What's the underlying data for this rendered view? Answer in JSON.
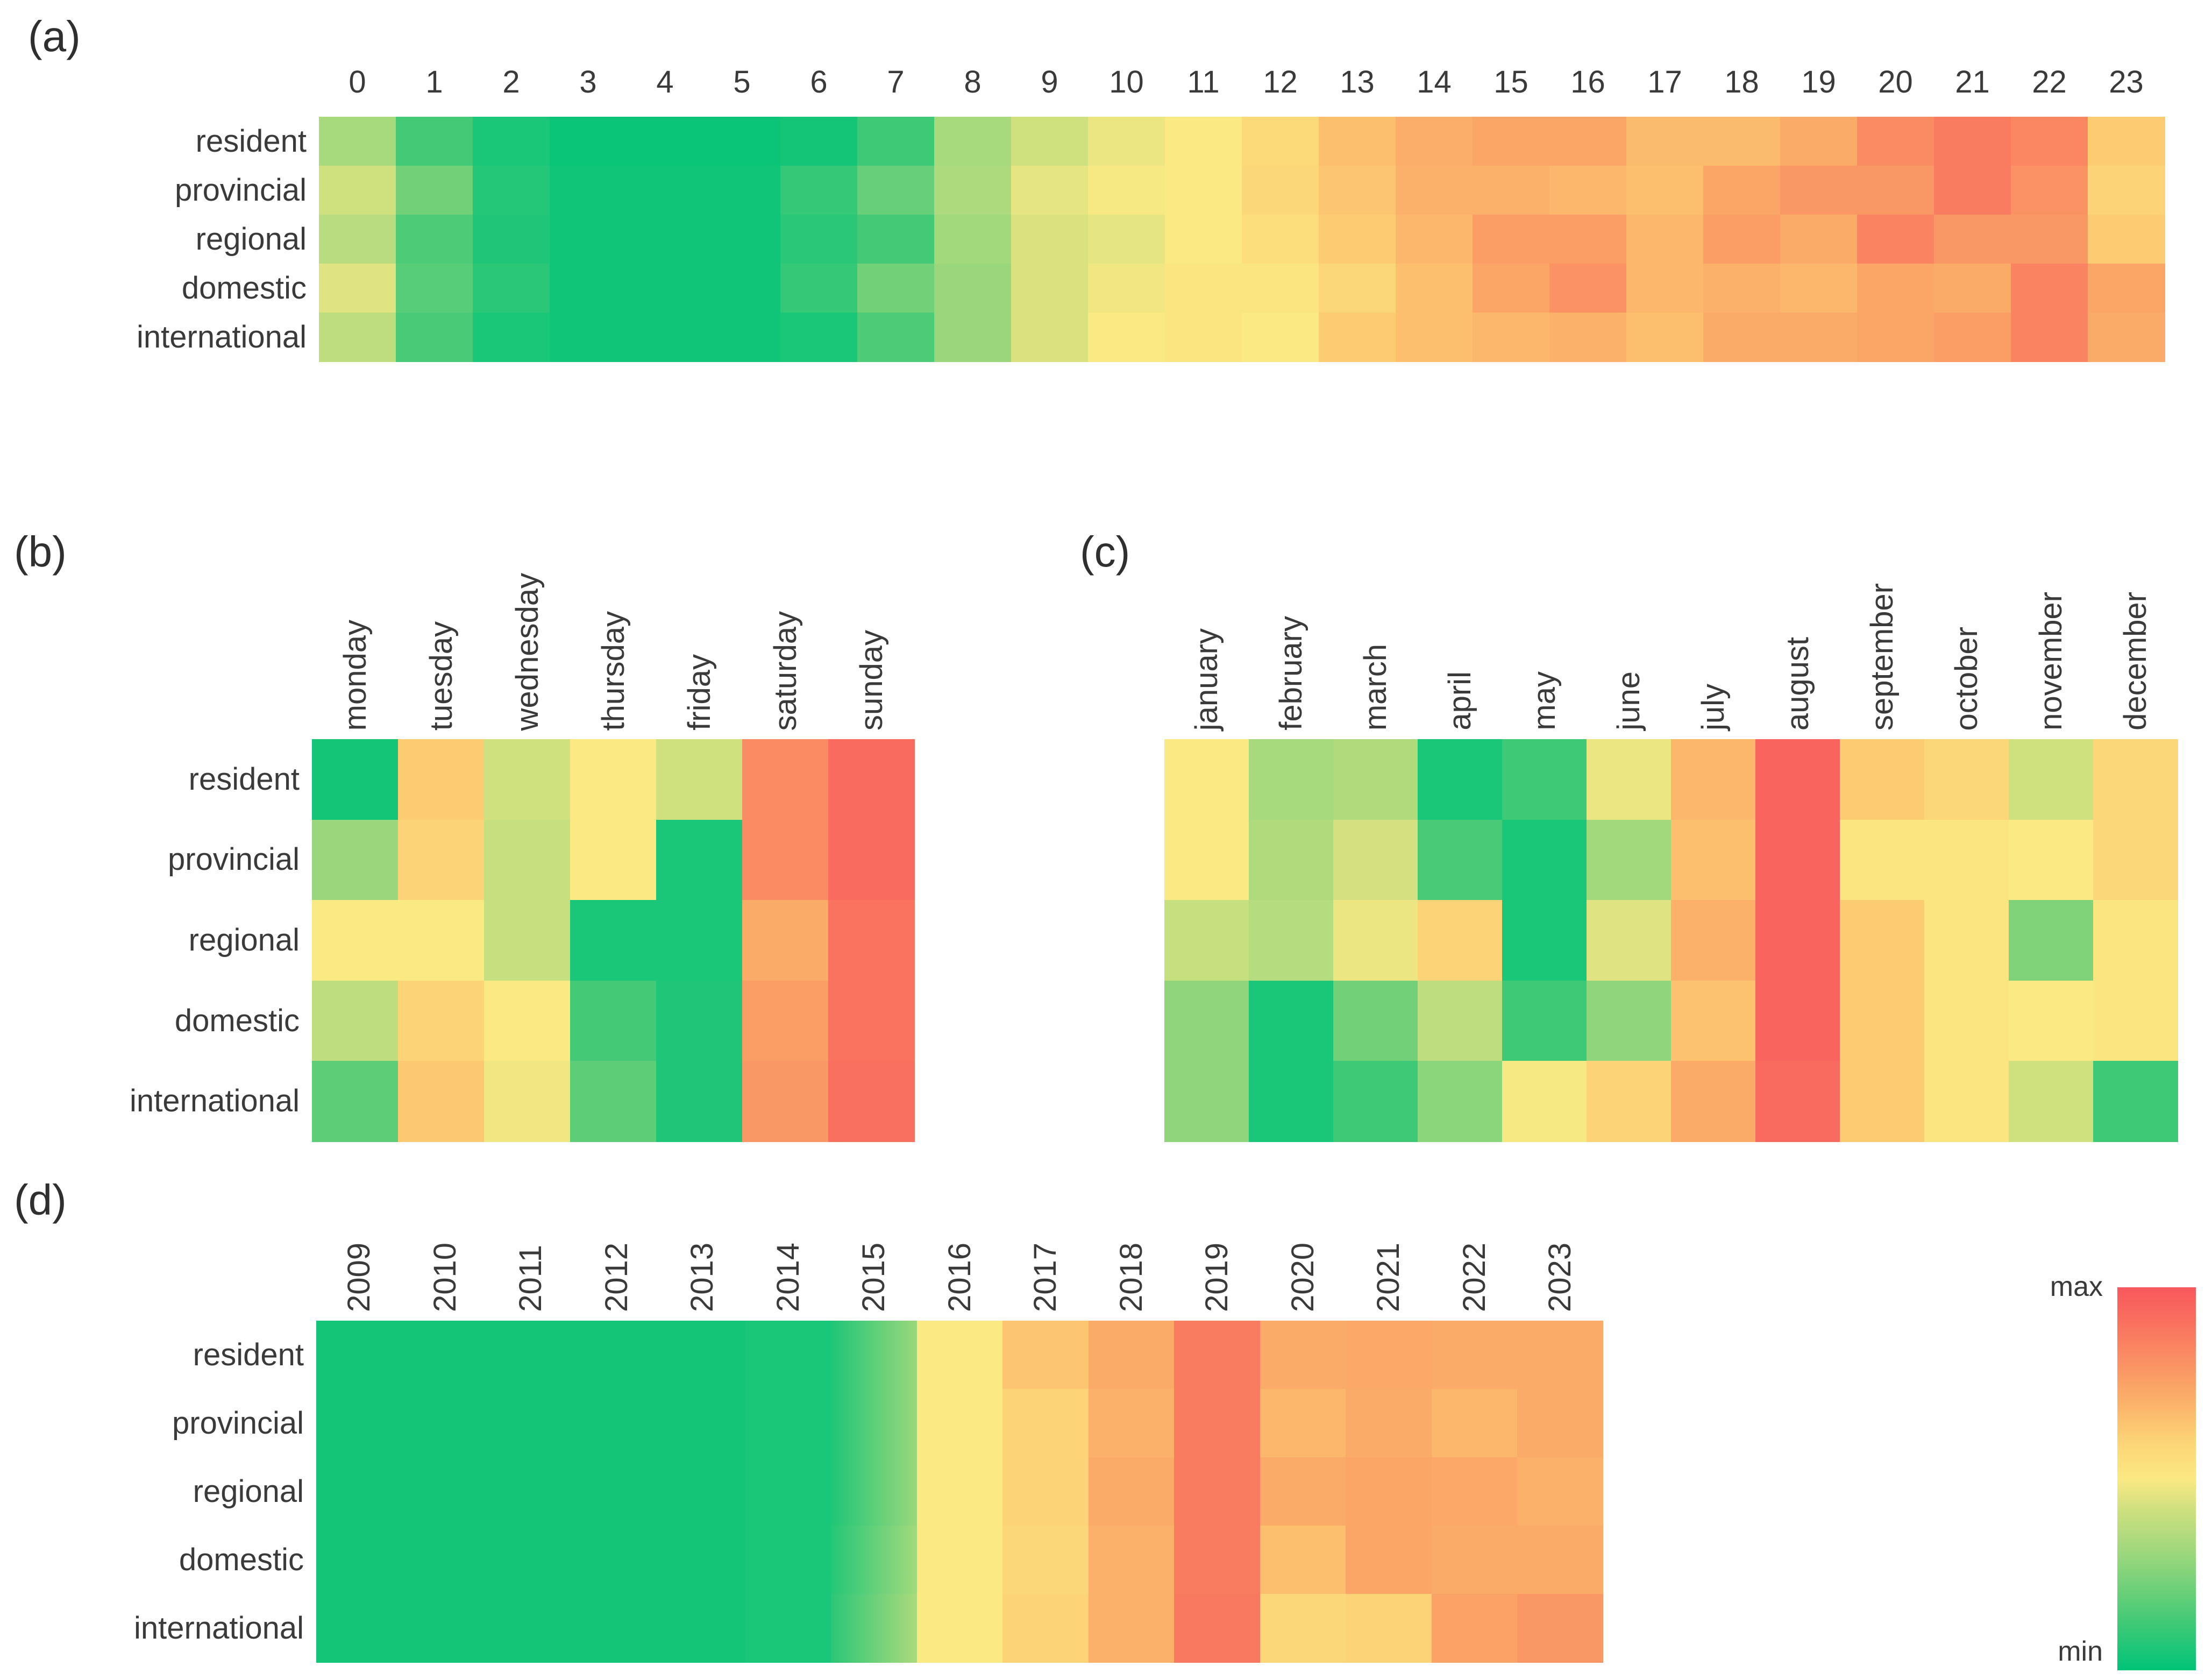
{
  "legend": {
    "max": "max",
    "min": "min"
  },
  "colors": {
    "background": "#ffffff",
    "text": "#3a3a3a",
    "colormap_stops": [
      [
        0.0,
        "#00c377"
      ],
      [
        0.15,
        "#4ecb77"
      ],
      [
        0.3,
        "#9ad77c"
      ],
      [
        0.42,
        "#cfe07f"
      ],
      [
        0.5,
        "#fbe983"
      ],
      [
        0.6,
        "#fcd376"
      ],
      [
        0.7,
        "#fbb169"
      ],
      [
        0.8,
        "#fa9264"
      ],
      [
        0.9,
        "#f9735f"
      ],
      [
        1.0,
        "#f9575c"
      ]
    ]
  },
  "chart_data": [
    {
      "id": "a",
      "type": "heatmap",
      "title": "(a)",
      "rows": [
        "resident",
        "provincial",
        "regional",
        "domestic",
        "international"
      ],
      "columns": [
        "0",
        "1",
        "2",
        "3",
        "4",
        "5",
        "6",
        "7",
        "8",
        "9",
        "10",
        "11",
        "12",
        "13",
        "14",
        "15",
        "16",
        "17",
        "18",
        "19",
        "20",
        "21",
        "22",
        "23"
      ],
      "values": [
        [
          0.33,
          0.13,
          0.05,
          0.02,
          0.02,
          0.02,
          0.04,
          0.12,
          0.33,
          0.42,
          0.47,
          0.5,
          0.57,
          0.66,
          0.71,
          0.74,
          0.74,
          0.67,
          0.67,
          0.72,
          0.82,
          0.87,
          0.84,
          0.62
        ],
        [
          0.42,
          0.22,
          0.07,
          0.03,
          0.03,
          0.03,
          0.1,
          0.2,
          0.34,
          0.46,
          0.49,
          0.5,
          0.58,
          0.64,
          0.7,
          0.7,
          0.68,
          0.66,
          0.74,
          0.78,
          0.78,
          0.87,
          0.8,
          0.6
        ],
        [
          0.37,
          0.15,
          0.06,
          0.03,
          0.03,
          0.03,
          0.08,
          0.13,
          0.32,
          0.44,
          0.46,
          0.5,
          0.55,
          0.62,
          0.68,
          0.76,
          0.76,
          0.68,
          0.76,
          0.72,
          0.85,
          0.78,
          0.78,
          0.62
        ],
        [
          0.45,
          0.17,
          0.08,
          0.03,
          0.03,
          0.03,
          0.1,
          0.22,
          0.3,
          0.44,
          0.48,
          0.52,
          0.52,
          0.58,
          0.66,
          0.74,
          0.8,
          0.68,
          0.7,
          0.68,
          0.74,
          0.72,
          0.85,
          0.74
        ],
        [
          0.38,
          0.14,
          0.05,
          0.03,
          0.03,
          0.03,
          0.05,
          0.15,
          0.3,
          0.44,
          0.5,
          0.52,
          0.5,
          0.62,
          0.66,
          0.68,
          0.7,
          0.66,
          0.72,
          0.72,
          0.74,
          0.76,
          0.85,
          0.72
        ]
      ],
      "value_scale": "normalized 0=min(green) to 1=max(red), estimated from cell colors"
    },
    {
      "id": "b",
      "type": "heatmap",
      "title": "(b)",
      "rows": [
        "resident",
        "provincial",
        "regional",
        "domestic",
        "international"
      ],
      "columns": [
        "monday",
        "tuesday",
        "wednesday",
        "thursday",
        "friday",
        "saturday",
        "sunday"
      ],
      "values": [
        [
          0.04,
          0.62,
          0.42,
          0.5,
          0.42,
          0.82,
          0.93
        ],
        [
          0.3,
          0.6,
          0.4,
          0.5,
          0.05,
          0.82,
          0.93
        ],
        [
          0.5,
          0.5,
          0.4,
          0.05,
          0.05,
          0.72,
          0.9
        ],
        [
          0.38,
          0.6,
          0.5,
          0.13,
          0.06,
          0.76,
          0.9
        ],
        [
          0.18,
          0.63,
          0.48,
          0.18,
          0.06,
          0.78,
          0.91
        ]
      ],
      "value_scale": "normalized 0=min(green) to 1=max(red), estimated from cell colors"
    },
    {
      "id": "c",
      "type": "heatmap",
      "title": "(c)",
      "rows": [
        "resident",
        "provincial",
        "regional",
        "domestic",
        "international"
      ],
      "columns": [
        "january",
        "february",
        "march",
        "april",
        "may",
        "june",
        "july",
        "august",
        "september",
        "october",
        "november",
        "december"
      ],
      "values": [
        [
          0.5,
          0.33,
          0.35,
          0.05,
          0.12,
          0.47,
          0.68,
          0.95,
          0.62,
          0.58,
          0.42,
          0.58
        ],
        [
          0.5,
          0.35,
          0.43,
          0.14,
          0.05,
          0.32,
          0.66,
          0.95,
          0.52,
          0.52,
          0.5,
          0.58
        ],
        [
          0.4,
          0.36,
          0.47,
          0.6,
          0.05,
          0.45,
          0.7,
          0.95,
          0.62,
          0.52,
          0.25,
          0.52
        ],
        [
          0.28,
          0.05,
          0.22,
          0.38,
          0.12,
          0.28,
          0.65,
          0.95,
          0.62,
          0.52,
          0.5,
          0.52
        ],
        [
          0.28,
          0.05,
          0.12,
          0.27,
          0.49,
          0.6,
          0.72,
          0.93,
          0.62,
          0.52,
          0.42,
          0.12
        ]
      ],
      "value_scale": "normalized 0=min(green) to 1=max(red), estimated from cell colors"
    },
    {
      "id": "d",
      "type": "heatmap",
      "title": "(d)",
      "rows": [
        "resident",
        "provincial",
        "regional",
        "domestic",
        "international"
      ],
      "columns": [
        "2009",
        "2010",
        "2011",
        "2012",
        "2013",
        "2014",
        "2015",
        "2016",
        "2017",
        "2018",
        "2019",
        "2020",
        "2021",
        "2022",
        "2023"
      ],
      "values": [
        [
          0.04,
          0.04,
          0.04,
          0.04,
          0.04,
          0.05,
          [
            0.06,
            0.3
          ],
          0.5,
          0.64,
          0.72,
          0.87,
          0.72,
          0.73,
          0.72,
          0.72
        ],
        [
          0.04,
          0.04,
          0.04,
          0.04,
          0.04,
          0.05,
          [
            0.06,
            0.3
          ],
          0.5,
          0.6,
          0.7,
          0.87,
          0.68,
          0.72,
          0.68,
          0.72
        ],
        [
          0.04,
          0.04,
          0.04,
          0.04,
          0.04,
          0.05,
          [
            0.06,
            0.3
          ],
          0.5,
          0.6,
          0.72,
          0.87,
          0.72,
          0.74,
          0.73,
          0.7
        ],
        [
          0.04,
          0.04,
          0.04,
          0.04,
          0.04,
          0.05,
          [
            0.07,
            0.32
          ],
          0.5,
          0.58,
          0.7,
          0.87,
          0.66,
          0.74,
          0.72,
          0.72
        ],
        [
          0.04,
          0.04,
          0.04,
          0.04,
          0.04,
          0.05,
          [
            0.08,
            0.34
          ],
          0.5,
          0.6,
          0.7,
          0.88,
          0.58,
          0.6,
          0.75,
          0.78
        ]
      ],
      "value_scale": "normalized 0=min(green) to 1=max(red), estimated from cell colors; 2015 cells show a left-to-right gradient"
    }
  ]
}
